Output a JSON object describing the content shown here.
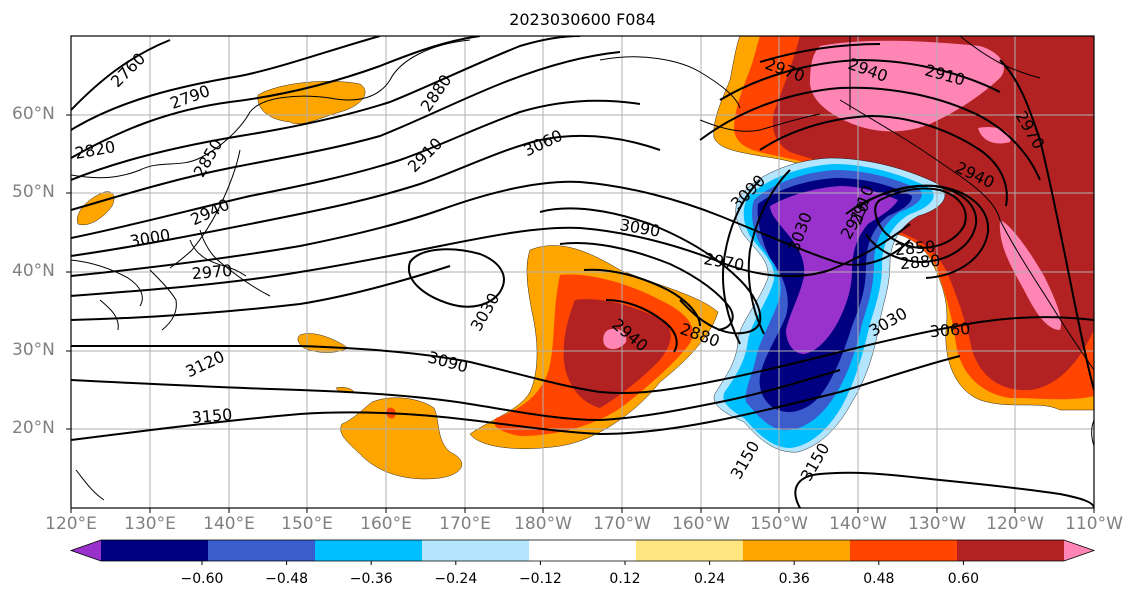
{
  "title": "2023030600 F084",
  "lat_labels": [
    "60°N",
    "50°N",
    "40°N",
    "30°N",
    "20°N"
  ],
  "lon_labels": [
    "120°E",
    "130°E",
    "140°E",
    "150°E",
    "160°E",
    "170°E",
    "180°W",
    "170°W",
    "160°W",
    "150°W",
    "140°W",
    "130°W",
    "120°W",
    "110°W"
  ],
  "colorbar": {
    "colors": [
      "#9932cc",
      "#000080",
      "#3a5ccc",
      "#00bfff",
      "#b3e5ff",
      "#ffffff",
      "#ffe680",
      "#ffa500",
      "#ff4500",
      "#b22222",
      "#ff85b4"
    ],
    "tick_labels": [
      "−0.60",
      "−0.48",
      "−0.36",
      "−0.24",
      "−0.12",
      "0.12",
      "0.24",
      "0.36",
      "0.48",
      "0.60"
    ]
  },
  "contour_labels": [
    "2760",
    "2790",
    "2820",
    "2850",
    "2880",
    "2910",
    "2940",
    "3000",
    "2970",
    "3060",
    "3090",
    "3030",
    "3120",
    "3150",
    "2970",
    "2940",
    "2910",
    "2910",
    "2970",
    "2940",
    "3090",
    "2850",
    "2880",
    "2970",
    "3030",
    "3060",
    "2880",
    "2940",
    "3090",
    "3030",
    "3150",
    "3150",
    "2910"
  ]
}
